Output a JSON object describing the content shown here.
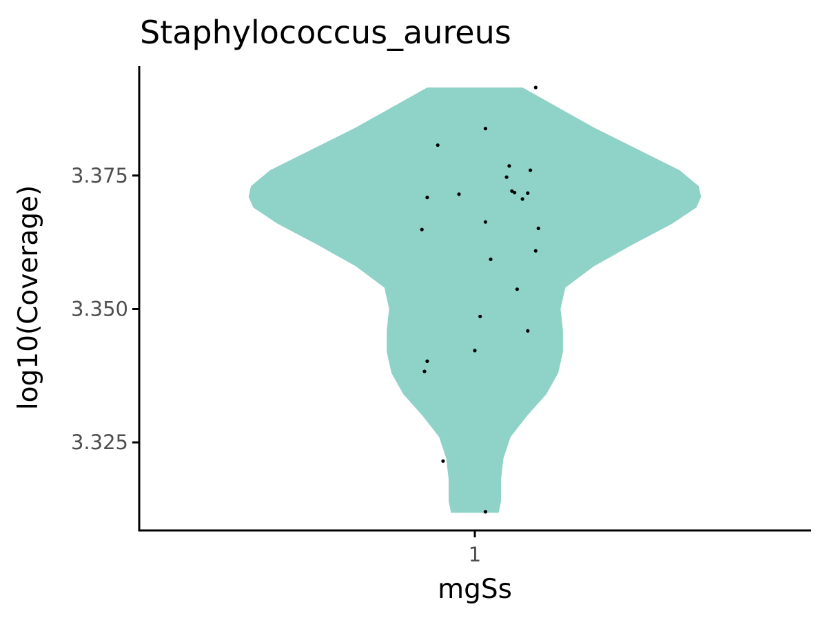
{
  "chart_data": {
    "type": "violin",
    "title": "Staphylococcus_aureus",
    "xlabel": "mgSs",
    "ylabel": "log10(Coverage)",
    "categories": [
      "1"
    ],
    "ylim": [
      3.3085,
      3.3955
    ],
    "yticks": [
      "3.325",
      "3.350",
      "3.375"
    ],
    "ytick_values": [
      3.325,
      3.35,
      3.375
    ],
    "violin_color": "#8fd3c8",
    "point_color": "#000000",
    "grid": false,
    "legend": "none",
    "violin": {
      "ymin": 3.3118,
      "ymax": 3.3915,
      "profile": [
        [
          3.3118,
          0.1
        ],
        [
          3.314,
          0.11
        ],
        [
          3.318,
          0.11
        ],
        [
          3.322,
          0.12
        ],
        [
          3.326,
          0.15
        ],
        [
          3.33,
          0.22
        ],
        [
          3.334,
          0.3
        ],
        [
          3.338,
          0.35
        ],
        [
          3.342,
          0.37
        ],
        [
          3.346,
          0.37
        ],
        [
          3.35,
          0.36
        ],
        [
          3.354,
          0.38
        ],
        [
          3.358,
          0.5
        ],
        [
          3.362,
          0.66
        ],
        [
          3.366,
          0.83
        ],
        [
          3.369,
          0.93
        ],
        [
          3.371,
          0.95
        ],
        [
          3.373,
          0.94
        ],
        [
          3.376,
          0.86
        ],
        [
          3.38,
          0.68
        ],
        [
          3.384,
          0.5
        ],
        [
          3.388,
          0.34
        ],
        [
          3.3915,
          0.2
        ]
      ]
    },
    "points": [
      {
        "x": 0.23,
        "y": 3.3915
      },
      {
        "x": 0.04,
        "y": 3.3838
      },
      {
        "x": -0.14,
        "y": 3.3807
      },
      {
        "x": 0.13,
        "y": 3.3768
      },
      {
        "x": 0.21,
        "y": 3.376
      },
      {
        "x": 0.12,
        "y": 3.3747
      },
      {
        "x": -0.06,
        "y": 3.3715
      },
      {
        "x": 0.14,
        "y": 3.3721
      },
      {
        "x": 0.15,
        "y": 3.3718
      },
      {
        "x": 0.2,
        "y": 3.3717
      },
      {
        "x": -0.18,
        "y": 3.3709
      },
      {
        "x": 0.18,
        "y": 3.3706
      },
      {
        "x": 0.04,
        "y": 3.3663
      },
      {
        "x": 0.24,
        "y": 3.3651
      },
      {
        "x": -0.2,
        "y": 3.3649
      },
      {
        "x": 0.23,
        "y": 3.3609
      },
      {
        "x": 0.06,
        "y": 3.3593
      },
      {
        "x": 0.16,
        "y": 3.3537
      },
      {
        "x": 0.02,
        "y": 3.3486
      },
      {
        "x": 0.2,
        "y": 3.3459
      },
      {
        "x": 0.0,
        "y": 3.3422
      },
      {
        "x": -0.18,
        "y": 3.3402
      },
      {
        "x": -0.19,
        "y": 3.3383
      },
      {
        "x": -0.12,
        "y": 3.3215
      },
      {
        "x": 0.04,
        "y": 3.312
      }
    ]
  }
}
